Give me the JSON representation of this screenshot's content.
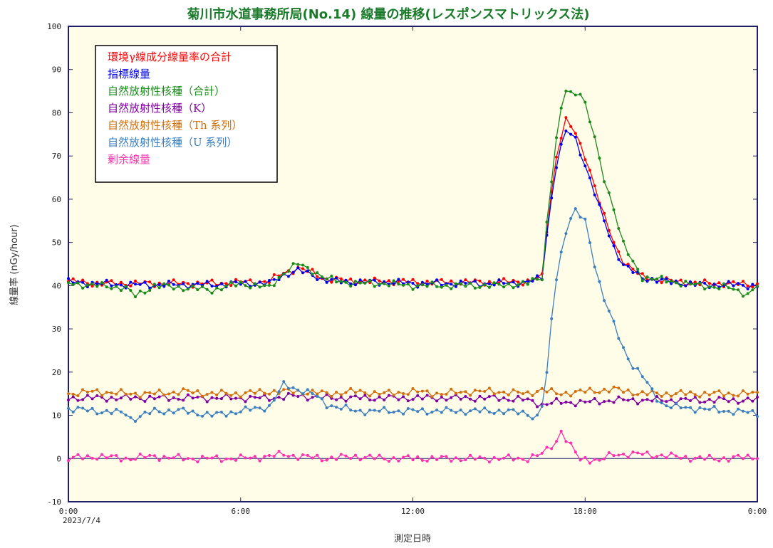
{
  "chart_data": {
    "type": "line",
    "title": "菊川市水道事務所局(No.14) 線量の推移(レスポンスマトリックス法)",
    "xlabel": "測定日時",
    "ylabel": "線量率 (nGy/hour)",
    "ylim": [
      -10,
      100
    ],
    "y_ticks": [
      -10,
      0,
      10,
      20,
      30,
      40,
      50,
      60,
      70,
      80,
      90,
      100
    ],
    "xlim": [
      0,
      24
    ],
    "x_ticks": [
      {
        "value": 0,
        "label": "0:00"
      },
      {
        "value": 6,
        "label": "6:00"
      },
      {
        "value": 12,
        "label": "12:00"
      },
      {
        "value": 18,
        "label": "18:00"
      },
      {
        "value": 24,
        "label": "0:00"
      }
    ],
    "x_date_label": "2023/7/4",
    "grid": false,
    "legend_position": "top-left",
    "series": [
      {
        "name": "環境γ線成分線量率の合計",
        "color": "#ff0000",
        "points": [
          [
            0,
            41
          ],
          [
            1,
            40.5
          ],
          [
            2,
            40.5
          ],
          [
            3,
            40.5
          ],
          [
            4,
            40.5
          ],
          [
            5,
            40.5
          ],
          [
            6,
            40.8
          ],
          [
            7,
            41
          ],
          [
            7.5,
            43
          ],
          [
            8,
            44
          ],
          [
            8.5,
            43
          ],
          [
            9,
            41.5
          ],
          [
            10,
            41
          ],
          [
            11,
            41
          ],
          [
            12,
            40.8
          ],
          [
            13,
            40.8
          ],
          [
            14,
            40.8
          ],
          [
            15,
            40.8
          ],
          [
            16,
            41
          ],
          [
            16.5,
            42
          ],
          [
            16.7,
            55
          ],
          [
            17,
            70
          ],
          [
            17.3,
            78.5
          ],
          [
            17.6,
            76
          ],
          [
            18,
            70
          ],
          [
            18.3,
            64
          ],
          [
            18.6,
            57
          ],
          [
            19,
            50
          ],
          [
            19.3,
            46
          ],
          [
            19.6,
            44
          ],
          [
            20,
            42
          ],
          [
            21,
            41
          ],
          [
            22,
            40.5
          ],
          [
            23,
            40.5
          ],
          [
            24,
            40.2
          ]
        ]
      },
      {
        "name": "指標線量",
        "color": "#0000ee",
        "points": [
          [
            0,
            40.8
          ],
          [
            1,
            40.5
          ],
          [
            2,
            40.2
          ],
          [
            3,
            40.2
          ],
          [
            4,
            40.2
          ],
          [
            5,
            40.2
          ],
          [
            6,
            40.5
          ],
          [
            7,
            40.5
          ],
          [
            7.5,
            42.5
          ],
          [
            8,
            43.5
          ],
          [
            8.5,
            42.5
          ],
          [
            9,
            41.2
          ],
          [
            10,
            40.8
          ],
          [
            11,
            40.8
          ],
          [
            12,
            40.5
          ],
          [
            13,
            40.5
          ],
          [
            14,
            40.5
          ],
          [
            15,
            40.5
          ],
          [
            16,
            40.8
          ],
          [
            16.5,
            41.8
          ],
          [
            16.7,
            54
          ],
          [
            17,
            68
          ],
          [
            17.3,
            75.5
          ],
          [
            17.6,
            75
          ],
          [
            18,
            68
          ],
          [
            18.3,
            62
          ],
          [
            18.6,
            56
          ],
          [
            19,
            49
          ],
          [
            19.3,
            45
          ],
          [
            19.6,
            43.5
          ],
          [
            20,
            41.8
          ],
          [
            21,
            40.8
          ],
          [
            22,
            40.2
          ],
          [
            23,
            40.2
          ],
          [
            24,
            40
          ]
        ]
      },
      {
        "name": "自然放射性核種（合計）",
        "color": "#1a8a1a",
        "points": [
          [
            0,
            40.5
          ],
          [
            1,
            40
          ],
          [
            2,
            39.5
          ],
          [
            2.3,
            37.5
          ],
          [
            3,
            40
          ],
          [
            4,
            39.5
          ],
          [
            5,
            39
          ],
          [
            6,
            40.5
          ],
          [
            7,
            39.5
          ],
          [
            7.5,
            43
          ],
          [
            8,
            45
          ],
          [
            8.5,
            43.5
          ],
          [
            9,
            41.5
          ],
          [
            10,
            40.5
          ],
          [
            11,
            40.5
          ],
          [
            12,
            40
          ],
          [
            13,
            40
          ],
          [
            14,
            40
          ],
          [
            15,
            40
          ],
          [
            16,
            40.5
          ],
          [
            16.5,
            42
          ],
          [
            16.7,
            57
          ],
          [
            17,
            74
          ],
          [
            17.3,
            85.5
          ],
          [
            17.6,
            84
          ],
          [
            17.8,
            85.5
          ],
          [
            18,
            82
          ],
          [
            18.3,
            75
          ],
          [
            18.6,
            66
          ],
          [
            19,
            58
          ],
          [
            19.3,
            50
          ],
          [
            19.6,
            46
          ],
          [
            20,
            42
          ],
          [
            21,
            41
          ],
          [
            22,
            40
          ],
          [
            23,
            39.5
          ],
          [
            23.7,
            38
          ],
          [
            24,
            40
          ]
        ]
      },
      {
        "name": "自然放射性核種（K）",
        "color": "#8000a0",
        "points": [
          [
            0,
            14
          ],
          [
            1,
            14
          ],
          [
            2,
            14
          ],
          [
            3,
            14
          ],
          [
            4,
            14
          ],
          [
            5,
            14
          ],
          [
            6,
            14
          ],
          [
            7,
            14
          ],
          [
            8,
            14.5
          ],
          [
            9,
            14
          ],
          [
            10,
            14
          ],
          [
            11,
            14
          ],
          [
            12,
            14
          ],
          [
            13,
            14
          ],
          [
            14,
            14
          ],
          [
            15,
            14
          ],
          [
            16,
            13.5
          ],
          [
            16.5,
            12.5
          ],
          [
            17,
            13
          ],
          [
            18,
            13
          ],
          [
            19,
            13.5
          ],
          [
            20,
            13.5
          ],
          [
            21,
            13.5
          ],
          [
            22,
            13.5
          ],
          [
            23,
            13.5
          ],
          [
            24,
            13.5
          ]
        ]
      },
      {
        "name": "自然放射性核種（Th 系列）",
        "color": "#d07010",
        "points": [
          [
            0,
            15
          ],
          [
            1,
            15.5
          ],
          [
            2,
            15
          ],
          [
            3,
            15
          ],
          [
            4,
            15.5
          ],
          [
            5,
            15
          ],
          [
            6,
            15
          ],
          [
            7,
            15.5
          ],
          [
            8,
            15.5
          ],
          [
            9,
            15
          ],
          [
            10,
            15.5
          ],
          [
            11,
            15
          ],
          [
            12,
            15.5
          ],
          [
            13,
            15
          ],
          [
            14,
            15.5
          ],
          [
            15,
            15.5
          ],
          [
            16,
            15
          ],
          [
            16.5,
            16
          ],
          [
            17,
            15
          ],
          [
            18,
            15.5
          ],
          [
            19,
            16
          ],
          [
            20,
            15
          ],
          [
            21,
            15
          ],
          [
            22,
            15
          ],
          [
            23,
            15
          ],
          [
            24,
            15
          ]
        ]
      },
      {
        "name": "自然放射性核種（U 系列）",
        "color": "#3c7fc0",
        "points": [
          [
            0,
            11.5
          ],
          [
            1,
            11
          ],
          [
            2,
            10.5
          ],
          [
            2.2,
            9
          ],
          [
            3,
            11
          ],
          [
            4,
            11
          ],
          [
            5,
            10
          ],
          [
            6,
            11
          ],
          [
            7,
            12
          ],
          [
            7.5,
            17
          ],
          [
            8,
            16
          ],
          [
            8.5,
            15
          ],
          [
            9,
            12.5
          ],
          [
            10,
            11
          ],
          [
            11,
            11
          ],
          [
            12,
            11
          ],
          [
            13,
            11
          ],
          [
            14,
            11
          ],
          [
            15,
            11
          ],
          [
            16,
            10.5
          ],
          [
            16.3,
            9
          ],
          [
            16.6,
            14
          ],
          [
            16.8,
            30
          ],
          [
            17,
            42
          ],
          [
            17.3,
            52
          ],
          [
            17.6,
            57.5
          ],
          [
            18,
            55
          ],
          [
            18.3,
            46
          ],
          [
            18.6,
            38
          ],
          [
            19,
            31
          ],
          [
            19.3,
            26
          ],
          [
            19.6,
            22
          ],
          [
            20,
            19
          ],
          [
            20.3,
            16
          ],
          [
            20.6,
            13
          ],
          [
            21,
            12
          ],
          [
            22,
            11.5
          ],
          [
            23,
            11
          ],
          [
            24,
            10.5
          ]
        ]
      },
      {
        "name": "剰余線量",
        "color": "#ff30b0",
        "points": [
          [
            0,
            0
          ],
          [
            1,
            0.5
          ],
          [
            2,
            0
          ],
          [
            3,
            0.5
          ],
          [
            4,
            0
          ],
          [
            5,
            0
          ],
          [
            6,
            0
          ],
          [
            7,
            0.5
          ],
          [
            7.5,
            1
          ],
          [
            8,
            0.5
          ],
          [
            9,
            0
          ],
          [
            10,
            0.5
          ],
          [
            11,
            0
          ],
          [
            12,
            0
          ],
          [
            13,
            0
          ],
          [
            14,
            0
          ],
          [
            15,
            0
          ],
          [
            16,
            0
          ],
          [
            16.5,
            1
          ],
          [
            17,
            4
          ],
          [
            17.2,
            7
          ],
          [
            17.4,
            3
          ],
          [
            17.6,
            2.5
          ],
          [
            17.8,
            -0.5
          ],
          [
            18,
            0
          ],
          [
            18.5,
            -0.5
          ],
          [
            19,
            1
          ],
          [
            20,
            1
          ],
          [
            21,
            0.5
          ],
          [
            22,
            0
          ],
          [
            23,
            0
          ],
          [
            24,
            0.5
          ]
        ]
      }
    ]
  }
}
